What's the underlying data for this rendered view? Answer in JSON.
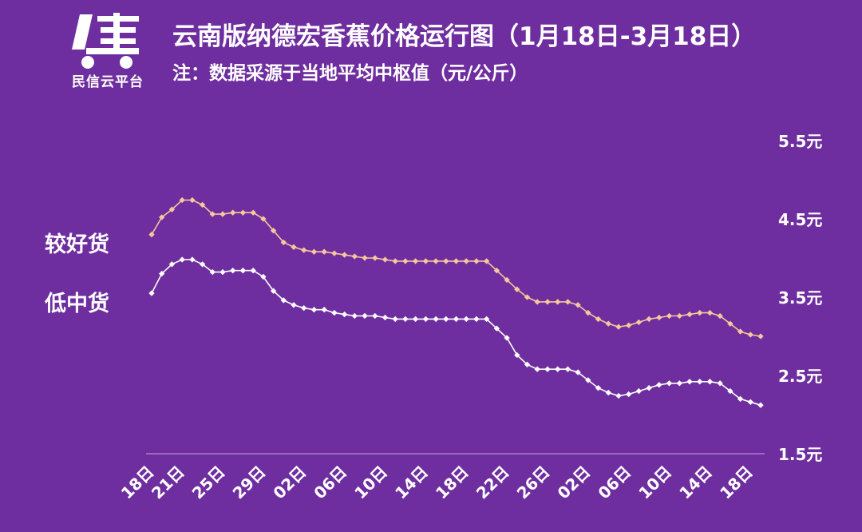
{
  "logo": {
    "text": "民信云平台",
    "icon": "truck-logo-icon"
  },
  "header": {
    "title": "云南版纳德宏香蕉价格运行图（1月18日-3月18日）",
    "subtitle": "注：数据采源于当地平均中枢值（元/公斤）"
  },
  "colors": {
    "background": "#6f2e9f",
    "good_series": "#f5c89a",
    "low_series": "#ffffff"
  },
  "chart_data": {
    "type": "line",
    "title": "云南版纳德宏香蕉价格运行图（1月18日-3月18日）",
    "subtitle": "注：数据采源于当地平均中枢值（元/公斤）",
    "ylim": [
      1.5,
      5.5
    ],
    "y_ticks": [
      "1.5元",
      "2.5元",
      "3.5元",
      "4.5元",
      "5.5元"
    ],
    "y_tick_values": [
      1.5,
      2.5,
      3.5,
      4.5,
      5.5
    ],
    "grid": false,
    "legend": "left",
    "x_tick_labels": [
      "18日",
      "21日",
      "25日",
      "29日",
      "02日",
      "06日",
      "10日",
      "14日",
      "18日",
      "22日",
      "26日",
      "02日",
      "06日",
      "10日",
      "14日",
      "18日"
    ],
    "x_tick_indices": [
      0,
      3,
      7,
      11,
      15,
      19,
      23,
      27,
      31,
      35,
      39,
      43,
      47,
      51,
      55,
      59
    ],
    "series": [
      {
        "name": "较好货",
        "values": [
          4.3,
          4.52,
          4.62,
          4.74,
          4.74,
          4.68,
          4.56,
          4.56,
          4.58,
          4.58,
          4.58,
          4.5,
          4.35,
          4.2,
          4.14,
          4.1,
          4.08,
          4.08,
          4.06,
          4.04,
          4.02,
          4.0,
          4.0,
          3.98,
          3.96,
          3.96,
          3.96,
          3.96,
          3.96,
          3.96,
          3.96,
          3.96,
          3.96,
          3.96,
          3.84,
          3.72,
          3.6,
          3.5,
          3.44,
          3.44,
          3.44,
          3.44,
          3.4,
          3.3,
          3.22,
          3.16,
          3.12,
          3.14,
          3.18,
          3.22,
          3.24,
          3.26,
          3.26,
          3.28,
          3.3,
          3.3,
          3.26,
          3.16,
          3.06,
          3.02,
          3.0
        ]
      },
      {
        "name": "低中货",
        "values": [
          3.55,
          3.8,
          3.92,
          3.98,
          3.98,
          3.92,
          3.82,
          3.82,
          3.84,
          3.84,
          3.84,
          3.76,
          3.58,
          3.46,
          3.4,
          3.36,
          3.34,
          3.34,
          3.3,
          3.28,
          3.26,
          3.26,
          3.26,
          3.24,
          3.22,
          3.22,
          3.22,
          3.22,
          3.22,
          3.22,
          3.22,
          3.22,
          3.22,
          3.22,
          3.1,
          2.98,
          2.76,
          2.64,
          2.58,
          2.58,
          2.58,
          2.58,
          2.54,
          2.44,
          2.34,
          2.28,
          2.24,
          2.26,
          2.3,
          2.34,
          2.38,
          2.4,
          2.4,
          2.42,
          2.42,
          2.42,
          2.4,
          2.3,
          2.2,
          2.16,
          2.12
        ]
      }
    ]
  }
}
